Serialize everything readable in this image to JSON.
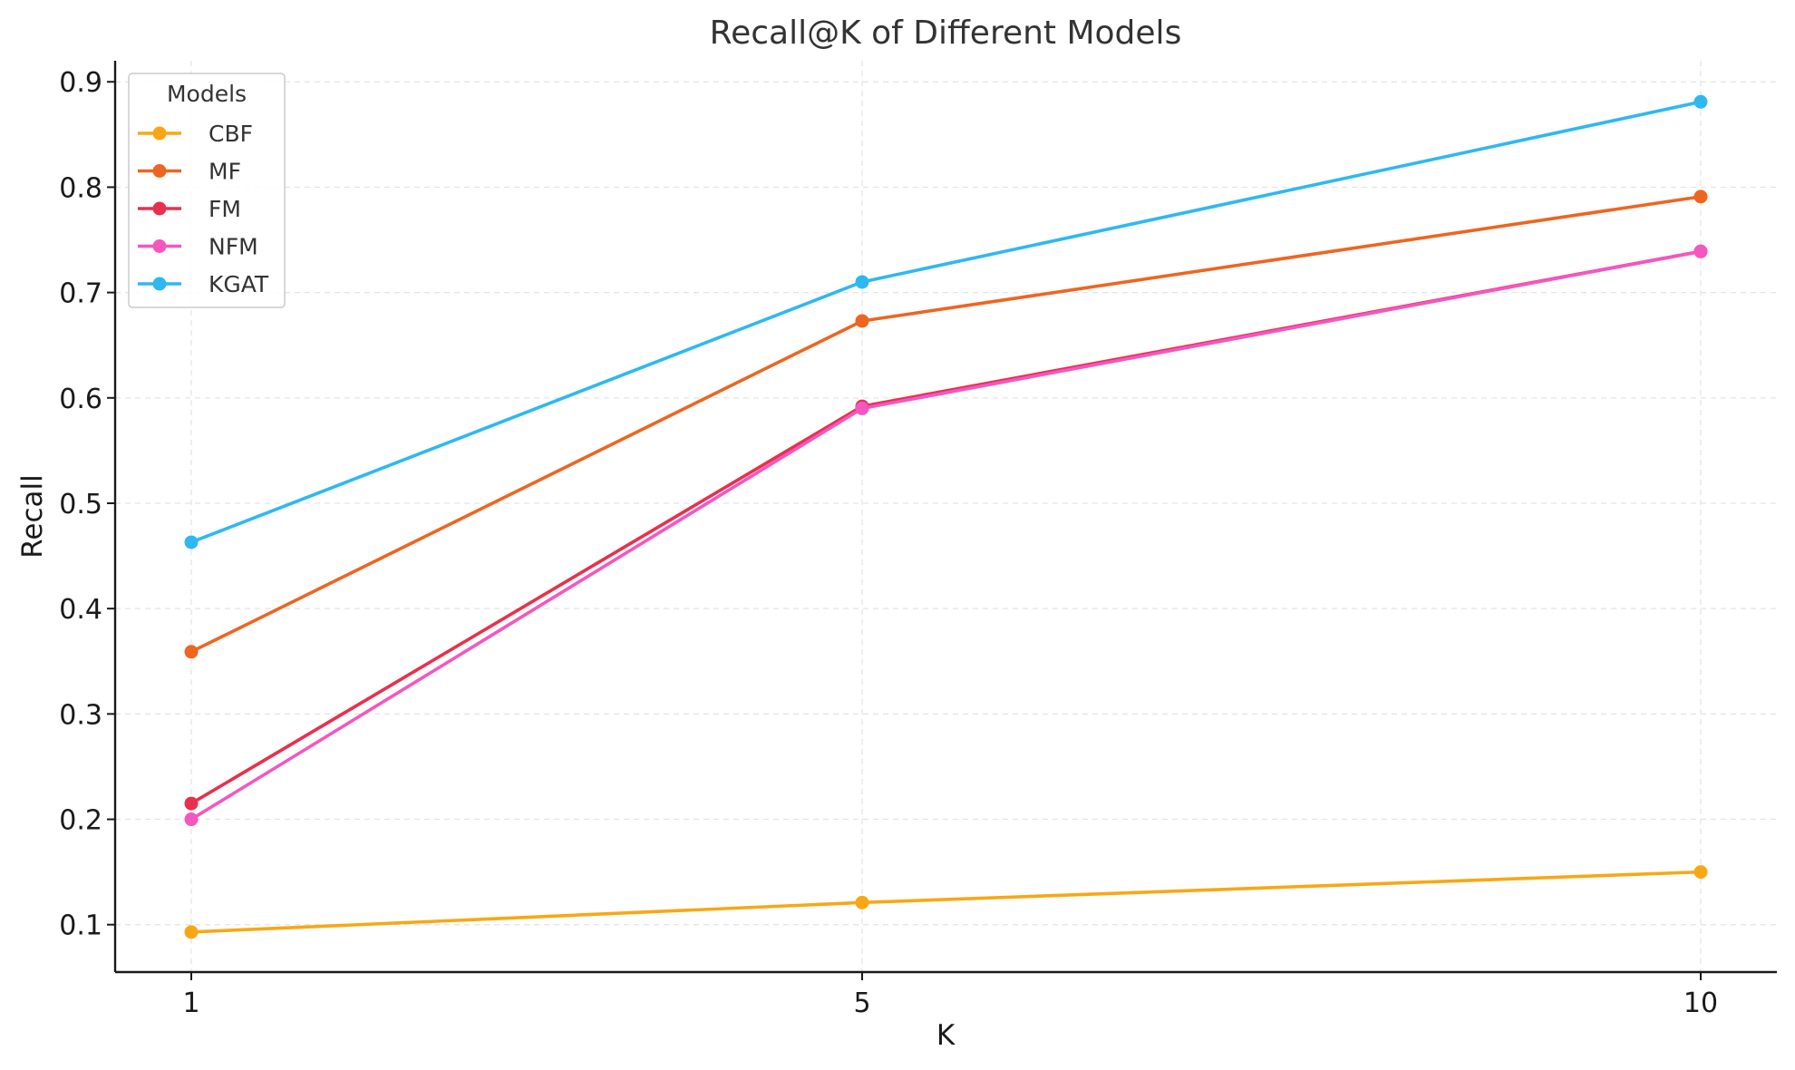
{
  "chart_data": {
    "type": "line",
    "title": "Recall@K of Different Models",
    "xlabel": "K",
    "ylabel": "Recall",
    "x": [
      1,
      5,
      10
    ],
    "x_ticks": [
      "1",
      "5",
      "10"
    ],
    "ylim": [
      0.055,
      0.92
    ],
    "y_ticks": [
      "0.1",
      "0.2",
      "0.3",
      "0.4",
      "0.5",
      "0.6",
      "0.7",
      "0.8",
      "0.9"
    ],
    "grid": true,
    "legend_title": "Models",
    "legend_position": "top-left",
    "series": [
      {
        "name": "CBF",
        "color": "#f8a714",
        "values": [
          0.093,
          0.121,
          0.15
        ]
      },
      {
        "name": "MF",
        "color": "#ee6520",
        "values": [
          0.359,
          0.673,
          0.791
        ]
      },
      {
        "name": "FM",
        "color": "#e8304e",
        "values": [
          0.215,
          0.592,
          0.739
        ]
      },
      {
        "name": "NFM",
        "color": "#f556c0",
        "values": [
          0.2,
          0.59,
          0.739
        ]
      },
      {
        "name": "KGAT",
        "color": "#2eb8f2",
        "values": [
          0.463,
          0.71,
          0.881
        ]
      }
    ]
  }
}
